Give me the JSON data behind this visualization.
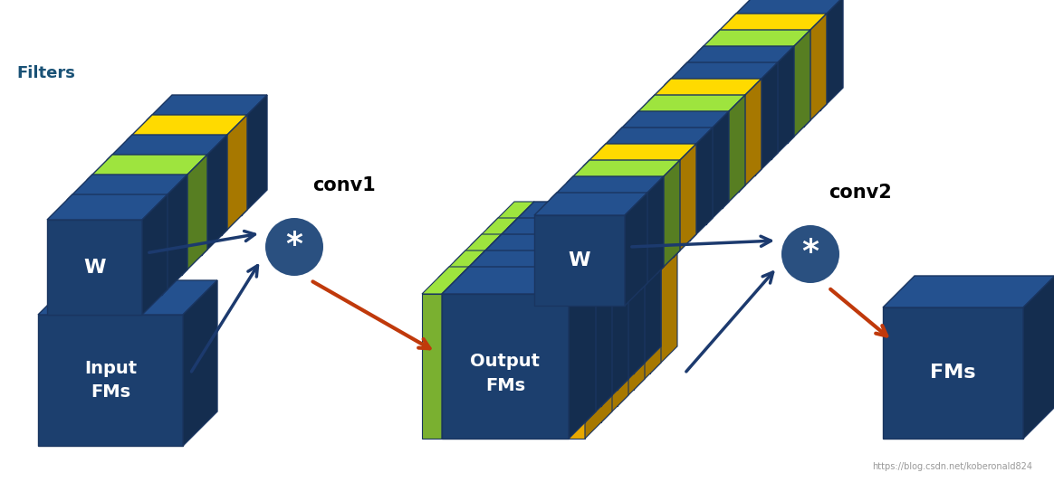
{
  "bg_color": "#ffffff",
  "dark_blue": "#1c3f6e",
  "dark_blue_top": "#2a5298",
  "dark_blue_side": "#162f52",
  "gold": "#e8a800",
  "gold_top": "#f5c842",
  "gold_side": "#b07f00",
  "green": "#7ab030",
  "green_top": "#9acc40",
  "green_side": "#5a8520",
  "operator_color": "#2a5080",
  "arrow_blue": "#1c3a6e",
  "arrow_red": "#c0390b",
  "text_white": "#ffffff",
  "text_blue": "#1a5276",
  "filters_label": "Filters",
  "conv1_label": "conv1",
  "conv2_label": "conv2",
  "input_label": "Input\nFMs",
  "output_label": "Output\nFMs",
  "fms_label": "FMs",
  "w_label": "W",
  "watermark": "https://blog.csdn.net/koberonald824"
}
